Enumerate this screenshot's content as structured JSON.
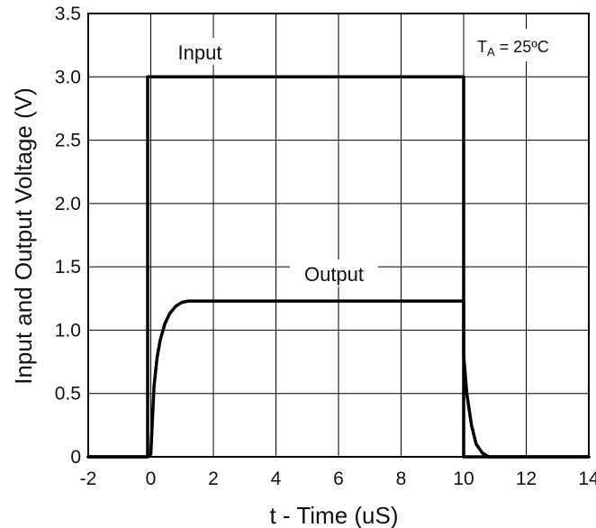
{
  "chart_data": {
    "type": "line",
    "xlabel": "t - Time (uS)",
    "ylabel": "Input and Output Voltage (V)",
    "xlim": [
      -2,
      14
    ],
    "ylim": [
      0,
      3.5
    ],
    "xticks": [
      "-2",
      "0",
      "2",
      "4",
      "6",
      "8",
      "10",
      "12",
      "14"
    ],
    "yticks": [
      "0",
      "0.5",
      "1.0",
      "1.5",
      "2.0",
      "2.5",
      "3.0",
      "3.5"
    ],
    "grid": true,
    "condition": {
      "prefix": "T",
      "subscript": "A",
      "suffix": " = 25ºC"
    },
    "series": [
      {
        "name": "Input",
        "color": "#000000",
        "points": [
          [
            -2,
            0
          ],
          [
            -0.1,
            0
          ],
          [
            -0.1,
            3.0
          ],
          [
            10,
            3.0
          ],
          [
            10,
            0
          ],
          [
            14,
            0
          ]
        ]
      },
      {
        "name": "Output",
        "color": "#000000",
        "points": [
          [
            -2,
            0
          ],
          [
            -0.1,
            0
          ],
          [
            0,
            0.02
          ],
          [
            0.1,
            0.55
          ],
          [
            0.2,
            0.78
          ],
          [
            0.3,
            0.92
          ],
          [
            0.45,
            1.05
          ],
          [
            0.6,
            1.13
          ],
          [
            0.8,
            1.19
          ],
          [
            1.0,
            1.22
          ],
          [
            1.2,
            1.23
          ],
          [
            10,
            1.23
          ],
          [
            10.0,
            0.8
          ],
          [
            10.1,
            0.5
          ],
          [
            10.25,
            0.25
          ],
          [
            10.4,
            0.1
          ],
          [
            10.6,
            0.03
          ],
          [
            10.8,
            0
          ],
          [
            14,
            0
          ]
        ]
      }
    ]
  }
}
